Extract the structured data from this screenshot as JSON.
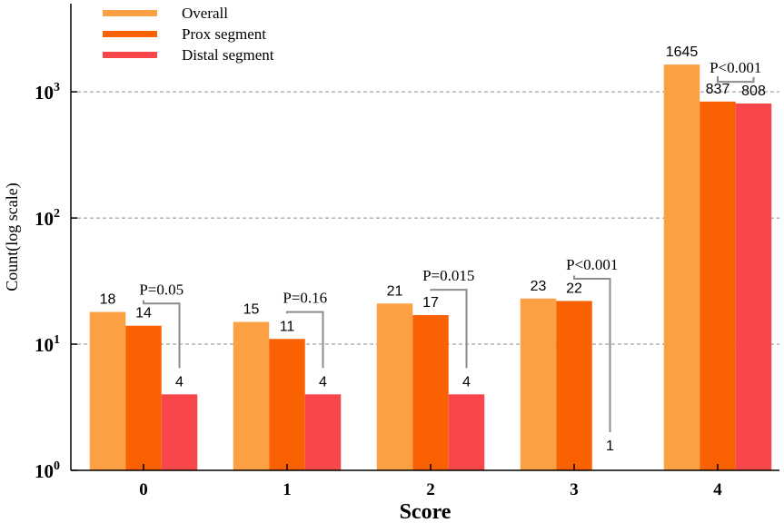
{
  "chart_data": {
    "type": "bar",
    "title": "",
    "xlabel": "Score",
    "ylabel": "Count(log scale)",
    "yscale": "log",
    "ylim": [
      1,
      5000
    ],
    "grid": "horizontal dashed",
    "legend_position": "top-left",
    "categories": [
      "0",
      "1",
      "2",
      "3",
      "4"
    ],
    "series": [
      {
        "name": "Overall",
        "color": "#FBA143",
        "values": [
          18,
          15,
          21,
          23,
          1645
        ],
        "labels": [
          "18",
          "15",
          "21",
          "23",
          "1645"
        ]
      },
      {
        "name": "Prox segment",
        "color": "#FA6103",
        "values": [
          14,
          11,
          17,
          22,
          837
        ],
        "labels": [
          "14",
          "11",
          "17",
          "22",
          "837"
        ]
      },
      {
        "name": "Distal segment",
        "color": "#F9464A",
        "values": [
          4,
          4,
          4,
          1,
          808
        ],
        "labels": [
          "4",
          "4",
          "4",
          "1",
          "808"
        ]
      }
    ],
    "yticks": [
      {
        "base": "10",
        "exp": "0",
        "value": 1
      },
      {
        "base": "10",
        "exp": "1",
        "value": 10
      },
      {
        "base": "10",
        "exp": "2",
        "value": 100
      },
      {
        "base": "10",
        "exp": "3",
        "value": 1000
      }
    ],
    "annotations": [
      {
        "category": "0",
        "text": "P=0.05",
        "bracket_top_value": 21
      },
      {
        "category": "1",
        "text": "P=0.16",
        "bracket_top_value": 18
      },
      {
        "category": "2",
        "text": "P=0.015",
        "bracket_top_value": 27
      },
      {
        "category": "3",
        "text": "P<0.001",
        "bracket_top_value": 33
      },
      {
        "category": "4",
        "text": "P<0.001",
        "bracket_top_value": 1200
      }
    ]
  }
}
